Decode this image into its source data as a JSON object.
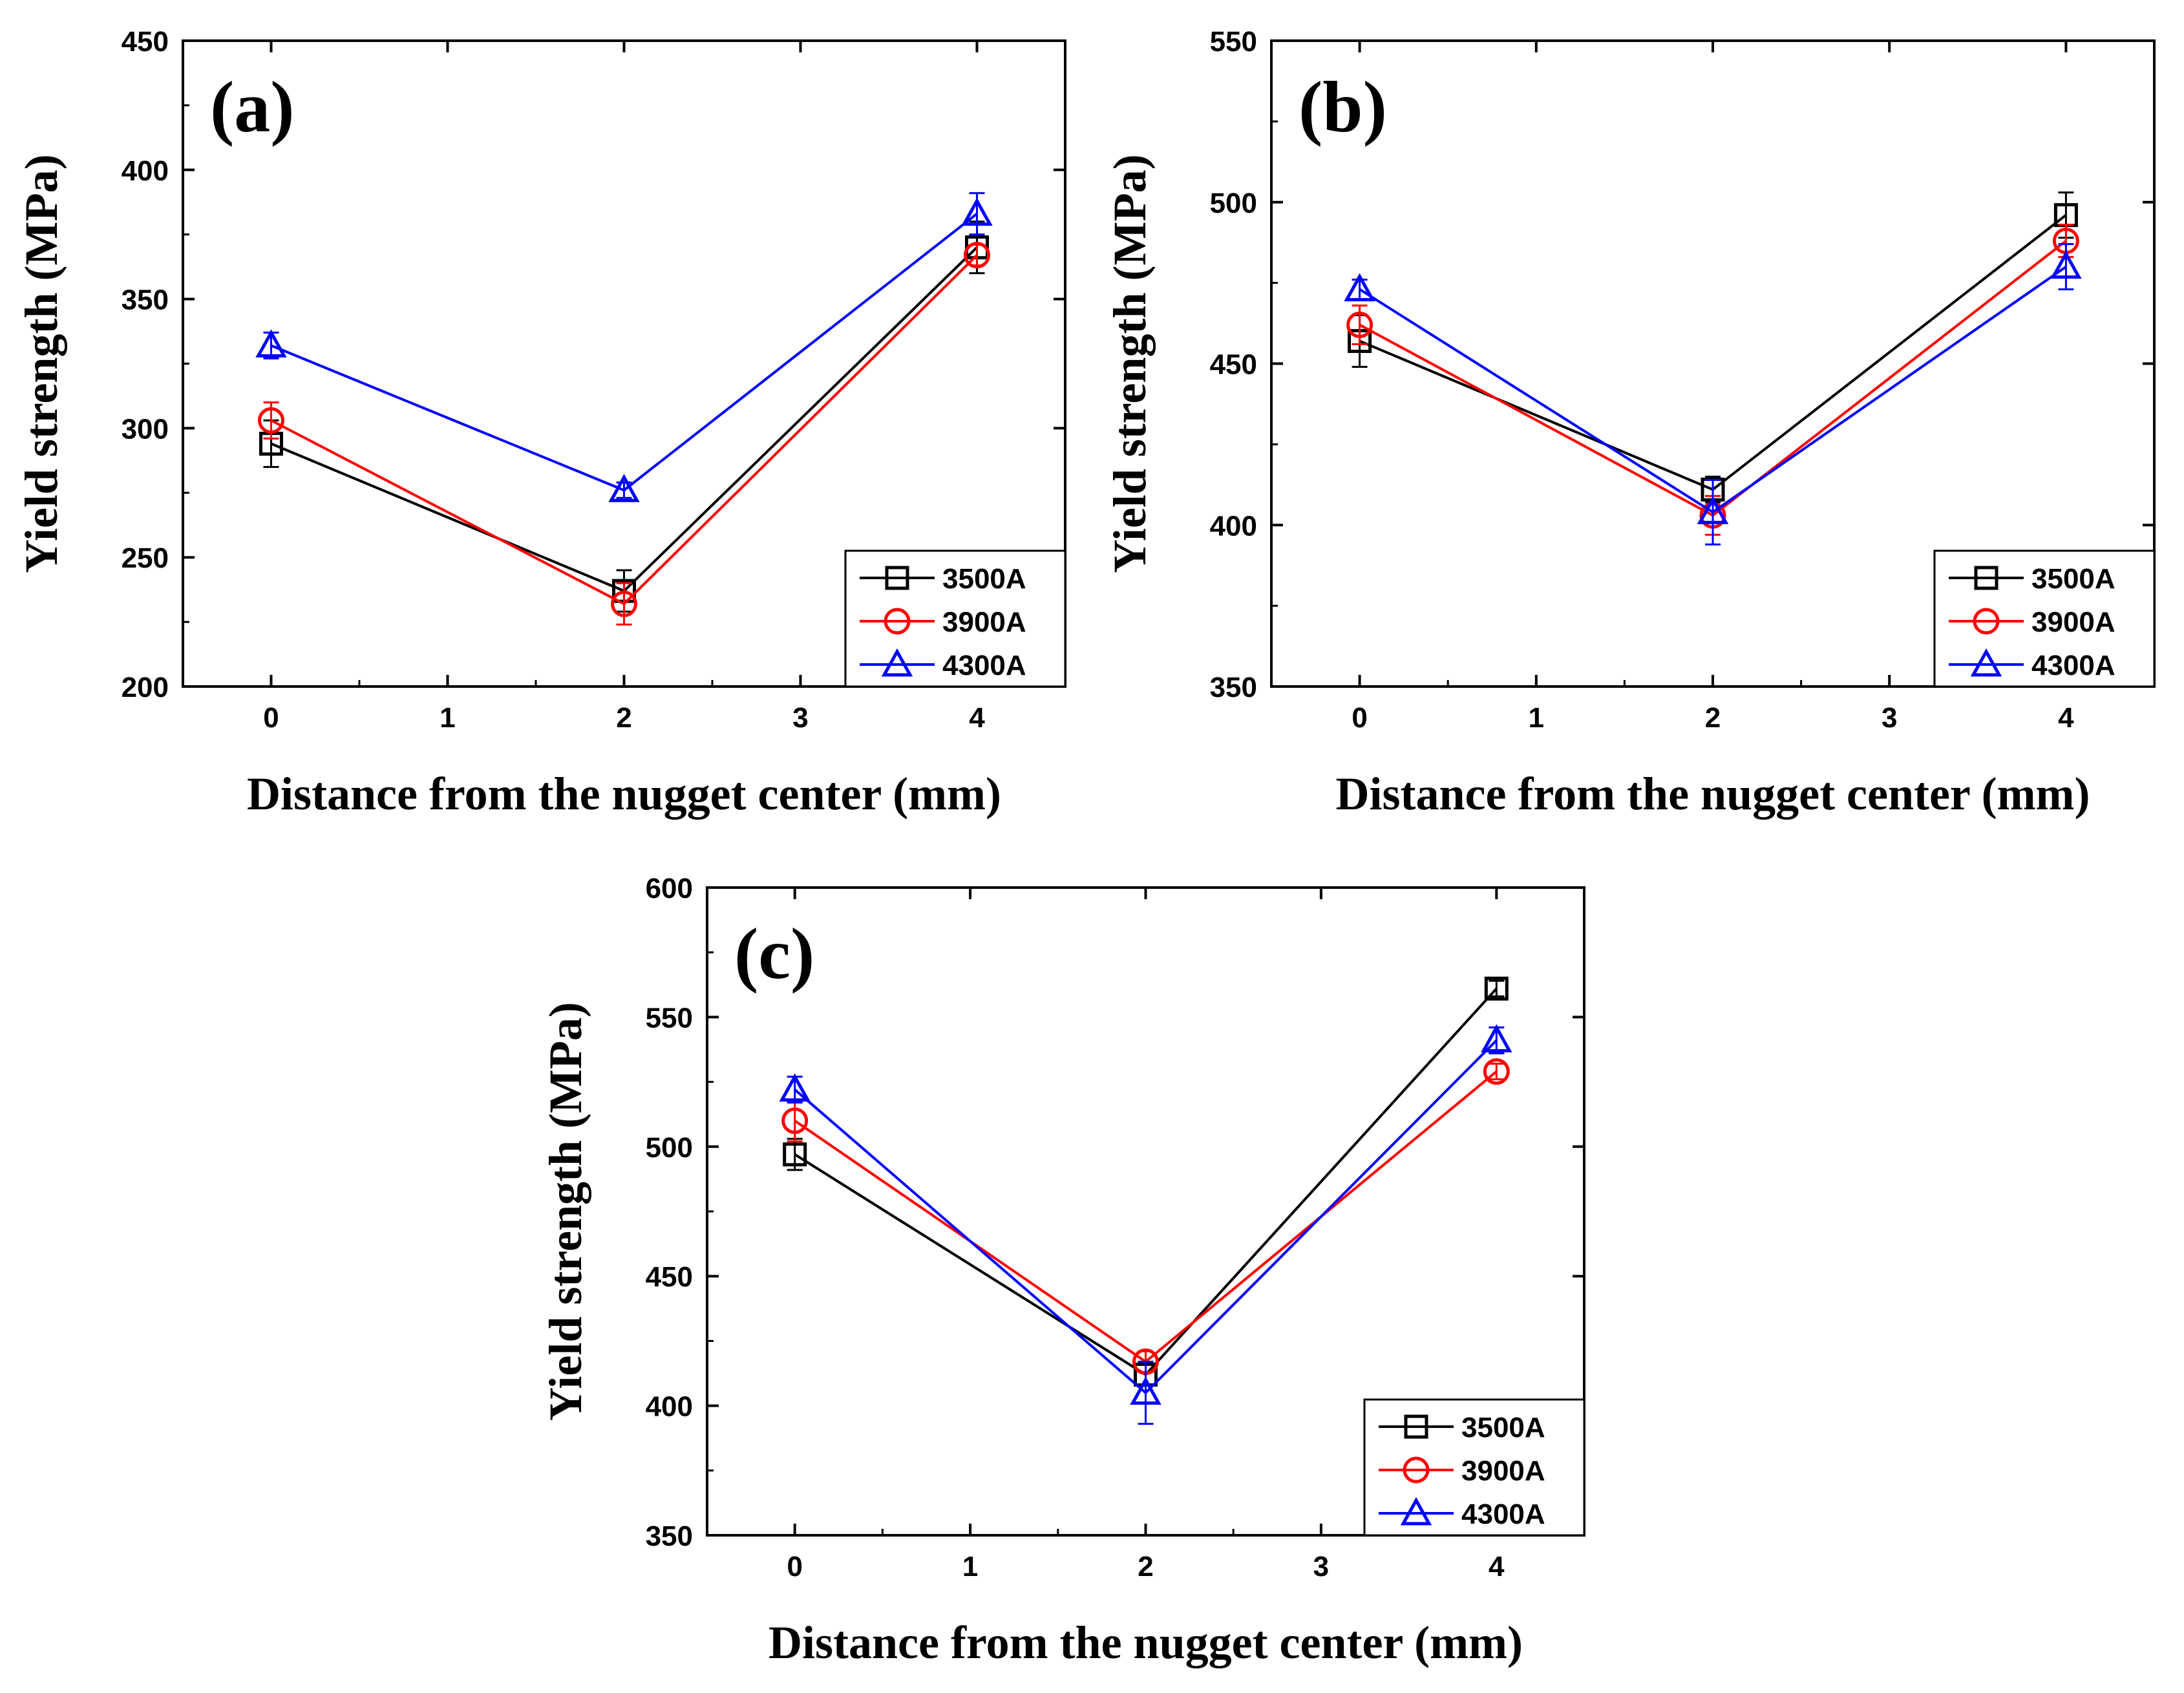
{
  "chart_data": [
    {
      "type": "line",
      "panel_label": "(a)",
      "xlabel": "Distance from the nugget center (mm)",
      "ylabel": "Yield strength (MPa)",
      "xlim": [
        -0.5,
        4.5
      ],
      "ylim": [
        200,
        450
      ],
      "x_ticks": [
        0,
        1,
        2,
        3,
        4
      ],
      "y_ticks": [
        200,
        250,
        300,
        350,
        400,
        450
      ],
      "legend_position": "bottom-right",
      "x": [
        0,
        2,
        4
      ],
      "series": [
        {
          "name": "3500A",
          "color": "#000000",
          "marker": "square",
          "values": [
            294,
            237,
            370
          ],
          "errors": [
            9,
            8,
            10
          ]
        },
        {
          "name": "3900A",
          "color": "#ff0000",
          "marker": "circle",
          "values": [
            303,
            232,
            367
          ],
          "errors": [
            7,
            8,
            4
          ]
        },
        {
          "name": "4300A",
          "color": "#0000ff",
          "marker": "triangle",
          "values": [
            332,
            276,
            383
          ],
          "errors": [
            5,
            3,
            8
          ]
        }
      ]
    },
    {
      "type": "line",
      "panel_label": "(b)",
      "xlabel": "Distance from the nugget center (mm)",
      "ylabel": "Yield strength (MPa)",
      "xlim": [
        -0.5,
        4.5
      ],
      "ylim": [
        350,
        550
      ],
      "x_ticks": [
        0,
        1,
        2,
        3,
        4
      ],
      "y_ticks": [
        350,
        400,
        450,
        500,
        550
      ],
      "legend_position": "bottom-right",
      "x": [
        0,
        2,
        4
      ],
      "series": [
        {
          "name": "3500A",
          "color": "#000000",
          "marker": "square",
          "values": [
            457,
            411,
            496
          ],
          "errors": [
            8,
            4,
            7
          ]
        },
        {
          "name": "3900A",
          "color": "#ff0000",
          "marker": "circle",
          "values": [
            462,
            403,
            488
          ],
          "errors": [
            6,
            6,
            5
          ]
        },
        {
          "name": "4300A",
          "color": "#0000ff",
          "marker": "triangle",
          "values": [
            473,
            404,
            480
          ],
          "errors": [
            3,
            10,
            7
          ]
        }
      ]
    },
    {
      "type": "line",
      "panel_label": "(c)",
      "xlabel": "Distance from the nugget center (mm)",
      "ylabel": "Yield strength (MPa)",
      "xlim": [
        -0.5,
        4.5
      ],
      "ylim": [
        350,
        600
      ],
      "x_ticks": [
        0,
        1,
        2,
        3,
        4
      ],
      "y_ticks": [
        350,
        400,
        450,
        500,
        550,
        600
      ],
      "legend_position": "bottom-right",
      "x": [
        0,
        2,
        4
      ],
      "series": [
        {
          "name": "3500A",
          "color": "#000000",
          "marker": "square",
          "values": [
            497,
            412,
            561
          ],
          "errors": [
            6,
            4,
            3
          ]
        },
        {
          "name": "3900A",
          "color": "#ff0000",
          "marker": "circle",
          "values": [
            510,
            417,
            529
          ],
          "errors": [
            8,
            4,
            3
          ]
        },
        {
          "name": "4300A",
          "color": "#0000ff",
          "marker": "triangle",
          "values": [
            522,
            405,
            541
          ],
          "errors": [
            5,
            12,
            5
          ]
        }
      ]
    }
  ]
}
